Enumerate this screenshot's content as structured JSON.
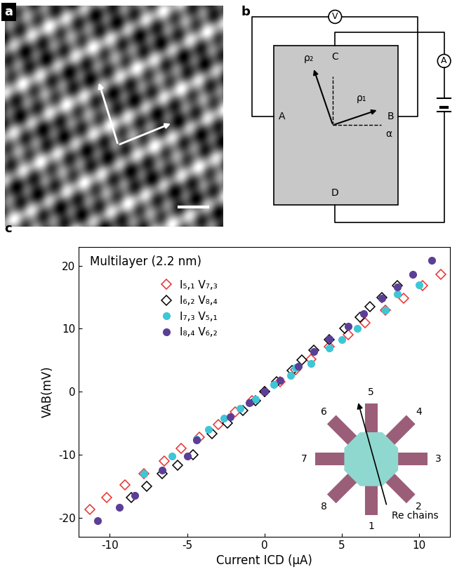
{
  "panel_labels": [
    "a",
    "b",
    "c"
  ],
  "diagram": {
    "voltmeter": "V",
    "ammeter": "A",
    "contacts": {
      "left": "A",
      "right": "B",
      "top": "C",
      "bottom": "D"
    },
    "vectors": [
      "ρ₁",
      "ρ₂"
    ],
    "angle": "α"
  },
  "chart_data": {
    "type": "scatter",
    "x_label": "Current ICD (µA)",
    "y_label": "VAB(mV)",
    "annotations": [
      "Multilayer (2.2 nm)"
    ],
    "xlim": [
      -12,
      12
    ],
    "xticks": [
      -10,
      -5,
      0,
      5,
      10
    ],
    "ylim": [
      -23,
      23
    ],
    "yticks": [
      -20,
      -10,
      0,
      10,
      20
    ],
    "legend": "upper left",
    "series": [
      {
        "name": "I₅,₁ V₇,₃",
        "color": "#e8312f",
        "marker": "open_diamond",
        "x": [
          -11.3,
          -10.2,
          -9.0,
          -7.8,
          -6.5,
          -5.4,
          -4.2,
          -3.0,
          -1.9,
          -0.8,
          0,
          1.0,
          2.0,
          3.0,
          4.2,
          5.4,
          6.5,
          7.8,
          9.0,
          10.2,
          11.4
        ],
        "values": [
          -18.7,
          -16.8,
          -14.8,
          -13.0,
          -11.0,
          -9.0,
          -7.2,
          -5.2,
          -3.2,
          -1.4,
          0,
          1.6,
          3.5,
          5.2,
          7.2,
          9.1,
          11.0,
          13.0,
          14.8,
          16.8,
          18.6
        ]
      },
      {
        "name": "I₆,₂ V₈,₄",
        "color": "#000000",
        "marker": "open_diamond",
        "x": [
          -8.6,
          -7.6,
          -6.6,
          -5.6,
          -4.6,
          -3.4,
          -2.4,
          -1.4,
          -0.6,
          0,
          0.8,
          1.8,
          2.4,
          3.2,
          4.2,
          5.2,
          6.2,
          6.8,
          7.6,
          8.6
        ],
        "values": [
          -16.8,
          -15.0,
          -13.0,
          -11.7,
          -10.0,
          -6.6,
          -5.0,
          -3.0,
          -1.4,
          0,
          1.6,
          3.4,
          5.0,
          6.6,
          8.3,
          10.0,
          11.8,
          13.5,
          15.0,
          16.8
        ]
      },
      {
        "name": "I₇,₃ V₅,₁",
        "color": "#3fc6d6",
        "marker": "circle",
        "x": [
          -7.8,
          -6.0,
          -4.4,
          -3.6,
          -2.6,
          -1.6,
          -0.6,
          0,
          0.6,
          1.7,
          2.0,
          3.0,
          4.2,
          5.0,
          6.0,
          7.8,
          8.6,
          10.0
        ],
        "values": [
          -13.0,
          -10.2,
          -7.5,
          -6.0,
          -4.2,
          -2.6,
          -1.2,
          0,
          1.2,
          2.6,
          3.8,
          4.5,
          6.9,
          8.3,
          10.0,
          13.0,
          15.5,
          17.0
        ]
      },
      {
        "name": "I₈,₄ V₆,₂",
        "color": "#5b3f97",
        "marker": "circle",
        "x": [
          -10.8,
          -9.4,
          -8.4,
          -6.6,
          -5.0,
          -4.4,
          -2.2,
          -1.0,
          0,
          1.0,
          2.2,
          3.2,
          4.2,
          5.4,
          6.4,
          7.6,
          8.6,
          9.6,
          10.8
        ],
        "values": [
          -20.5,
          -18.3,
          -16.5,
          -12.4,
          -10.2,
          -7.6,
          -4.0,
          -1.8,
          0,
          1.8,
          4.0,
          6.4,
          8.4,
          10.4,
          12.4,
          14.8,
          16.6,
          18.6,
          20.8
        ]
      }
    ],
    "inset": {
      "contacts": [
        "1",
        "2",
        "3",
        "4",
        "5",
        "6",
        "7",
        "8"
      ],
      "arrow_label": "Re chains"
    }
  }
}
